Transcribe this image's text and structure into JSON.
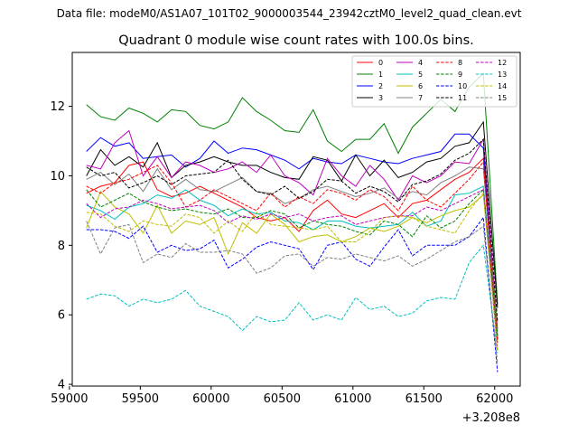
{
  "figure": {
    "suptitle": "Data file: modeM0/AS1A07_101T02_9000003544_23942cztM0_level2_quad_clean.evt"
  },
  "chart_data": {
    "type": "line",
    "title": "Quadrant 0 module wise count rates with 100.0s bins.",
    "xlabel": "",
    "ylabel": "",
    "x_offset_label": "+3.208e8",
    "xlim": [
      59020,
      62180
    ],
    "ylim": [
      3.95,
      13.55
    ],
    "xticks": [
      59000,
      59500,
      60000,
      60500,
      61000,
      61500,
      62000
    ],
    "yticks": [
      4,
      6,
      8,
      10,
      12
    ],
    "grid": false,
    "legend_position": "top-right",
    "legend_columns": 4,
    "x": [
      59120,
      59220,
      59320,
      59420,
      59520,
      59620,
      59720,
      59820,
      59920,
      60020,
      60120,
      60220,
      60320,
      60420,
      60520,
      60620,
      60720,
      60820,
      60920,
      61020,
      61120,
      61220,
      61320,
      61420,
      61520,
      61620,
      61720,
      61820,
      61920,
      62020
    ],
    "series": [
      {
        "name": "0",
        "color": "#ff0000",
        "dash": "solid",
        "values": [
          9.5,
          9.7,
          9.8,
          10.3,
          10.4,
          9.6,
          9.4,
          9.5,
          9.7,
          9.5,
          9.3,
          9.1,
          8.8,
          8.7,
          8.8,
          8.4,
          9.0,
          9.3,
          8.9,
          8.8,
          9.0,
          9.2,
          8.8,
          9.2,
          9.3,
          9.6,
          9.9,
          10.1,
          10.5,
          5.6
        ]
      },
      {
        "name": "1",
        "color": "#008000",
        "dash": "solid",
        "values": [
          12.05,
          11.7,
          11.6,
          11.95,
          11.8,
          11.55,
          11.9,
          11.85,
          11.45,
          11.35,
          11.55,
          12.25,
          11.85,
          11.6,
          11.3,
          11.25,
          11.9,
          11.0,
          10.7,
          11.05,
          11.05,
          11.5,
          10.65,
          11.4,
          11.8,
          12.2,
          11.85,
          12.55,
          12.95,
          6.3
        ]
      },
      {
        "name": "2",
        "color": "#0000ff",
        "dash": "solid",
        "values": [
          10.7,
          11.1,
          10.85,
          10.95,
          10.5,
          10.55,
          10.6,
          10.25,
          10.5,
          11.0,
          10.65,
          10.8,
          10.75,
          10.6,
          10.45,
          10.2,
          10.5,
          10.4,
          10.35,
          10.6,
          10.5,
          10.4,
          10.35,
          10.5,
          10.6,
          10.7,
          11.2,
          11.2,
          10.8,
          5.3
        ]
      },
      {
        "name": "3",
        "color": "#000000",
        "dash": "solid",
        "values": [
          10.0,
          10.75,
          10.3,
          10.55,
          10.25,
          10.95,
          9.95,
          10.3,
          10.4,
          10.55,
          10.4,
          10.3,
          10.3,
          10.1,
          9.95,
          9.9,
          10.55,
          10.45,
          9.85,
          10.6,
          10.0,
          10.45,
          9.95,
          10.1,
          10.4,
          10.5,
          10.85,
          10.95,
          11.55,
          6.2
        ]
      },
      {
        "name": "4",
        "color": "#bf00bf",
        "dash": "solid",
        "values": [
          10.3,
          10.2,
          10.95,
          11.3,
          10.0,
          10.55,
          9.95,
          10.4,
          10.3,
          10.1,
          10.2,
          10.4,
          10.1,
          10.6,
          10.0,
          9.8,
          9.45,
          10.5,
          10.0,
          9.7,
          10.3,
          9.9,
          9.3,
          10.0,
          9.8,
          10.0,
          10.4,
          10.35,
          11.05,
          5.3
        ]
      },
      {
        "name": "5",
        "color": "#00bfbf",
        "dash": "solid",
        "values": [
          9.15,
          9.0,
          8.75,
          9.1,
          9.2,
          9.45,
          9.35,
          9.6,
          9.3,
          9.15,
          8.85,
          9.05,
          8.9,
          8.95,
          8.7,
          8.65,
          8.45,
          8.7,
          8.7,
          8.55,
          8.5,
          8.55,
          8.6,
          8.95,
          8.55,
          8.7,
          9.45,
          9.5,
          9.7,
          5.4
        ]
      },
      {
        "name": "6",
        "color": "#bfbf00",
        "dash": "solid",
        "values": [
          8.5,
          9.55,
          9.1,
          8.9,
          8.35,
          9.15,
          8.35,
          8.7,
          8.6,
          8.8,
          7.75,
          8.65,
          8.35,
          8.9,
          8.6,
          8.1,
          8.25,
          8.3,
          8.1,
          8.25,
          8.5,
          8.4,
          8.55,
          8.8,
          8.65,
          8.85,
          9.0,
          9.1,
          9.45,
          5.2
        ]
      },
      {
        "name": "7",
        "color": "#808080",
        "dash": "solid",
        "values": [
          9.9,
          10.1,
          9.75,
          10.05,
          9.55,
          10.2,
          9.6,
          9.9,
          9.6,
          9.55,
          9.75,
          9.95,
          9.55,
          9.5,
          9.2,
          9.35,
          9.6,
          9.7,
          9.55,
          9.4,
          9.5,
          9.65,
          9.35,
          9.55,
          9.45,
          9.8,
          10.0,
          10.25,
          10.2,
          5.5
        ]
      },
      {
        "name": "8",
        "color": "#ff0000",
        "dash": "dashed",
        "values": [
          9.7,
          9.5,
          9.8,
          9.9,
          10.1,
          10.3,
          9.8,
          9.1,
          9.3,
          9.6,
          9.4,
          9.2,
          9.0,
          9.5,
          9.1,
          9.4,
          9.2,
          9.6,
          9.5,
          9.3,
          9.6,
          9.4,
          9.0,
          9.7,
          9.3,
          9.1,
          9.5,
          9.9,
          10.4,
          5.2
        ]
      },
      {
        "name": "9",
        "color": "#008000",
        "dash": "dashed",
        "values": [
          9.6,
          9.1,
          9.3,
          9.5,
          9.25,
          9.1,
          9.0,
          9.05,
          8.95,
          8.9,
          9.05,
          8.8,
          8.8,
          9.0,
          8.9,
          8.5,
          8.7,
          8.6,
          8.55,
          8.4,
          8.3,
          8.7,
          8.6,
          8.25,
          8.85,
          8.5,
          8.7,
          9.2,
          9.6,
          5.4
        ]
      },
      {
        "name": "10",
        "color": "#0000ff",
        "dash": "dashed",
        "values": [
          8.45,
          8.45,
          8.4,
          8.2,
          8.55,
          7.8,
          8.0,
          7.85,
          7.9,
          8.15,
          7.35,
          7.6,
          7.95,
          8.1,
          8.0,
          7.9,
          7.3,
          8.0,
          8.1,
          7.6,
          7.4,
          7.95,
          8.45,
          7.7,
          8.0,
          8.0,
          8.0,
          8.25,
          8.8,
          4.35
        ]
      },
      {
        "name": "11",
        "color": "#000000",
        "dash": "dashed",
        "values": [
          10.25,
          10.0,
          10.1,
          9.65,
          9.8,
          10.0,
          9.75,
          10.0,
          10.05,
          10.1,
          10.45,
          9.9,
          9.55,
          9.45,
          9.7,
          9.35,
          9.55,
          9.9,
          9.85,
          9.5,
          9.7,
          9.55,
          9.25,
          9.75,
          9.85,
          10.05,
          10.45,
          10.65,
          11.05,
          5.8
        ]
      },
      {
        "name": "12",
        "color": "#bf00bf",
        "dash": "dashed",
        "values": [
          9.2,
          8.8,
          9.05,
          9.1,
          9.3,
          9.2,
          9.05,
          9.1,
          9.15,
          9.0,
          8.65,
          8.85,
          8.75,
          8.9,
          8.8,
          8.9,
          8.7,
          8.8,
          8.85,
          8.6,
          8.7,
          8.8,
          8.85,
          8.85,
          9.1,
          9.0,
          9.2,
          9.4,
          9.6,
          5.0
        ]
      },
      {
        "name": "13",
        "color": "#00bfbf",
        "dash": "dashed",
        "values": [
          6.45,
          6.6,
          6.55,
          6.25,
          6.45,
          6.35,
          6.45,
          6.7,
          6.25,
          6.1,
          5.95,
          5.55,
          5.95,
          5.8,
          5.85,
          6.35,
          5.85,
          6.0,
          5.85,
          6.5,
          6.15,
          6.25,
          5.95,
          6.05,
          6.4,
          6.5,
          6.45,
          7.5,
          8.0,
          4.9
        ]
      },
      {
        "name": "14",
        "color": "#bfbf00",
        "dash": "dashed",
        "values": [
          8.95,
          8.9,
          8.55,
          8.4,
          8.7,
          8.6,
          8.55,
          8.9,
          8.8,
          8.35,
          8.7,
          8.4,
          8.95,
          8.6,
          8.55,
          8.5,
          8.45,
          8.55,
          8.1,
          8.1,
          8.4,
          8.8,
          8.85,
          8.8,
          8.55,
          8.45,
          8.35,
          9.0,
          9.5,
          4.95
        ]
      },
      {
        "name": "15",
        "color": "#808080",
        "dash": "dashed",
        "values": [
          8.7,
          7.75,
          8.5,
          8.6,
          7.5,
          7.75,
          7.65,
          8.05,
          7.8,
          7.8,
          7.85,
          7.75,
          7.2,
          7.35,
          7.7,
          7.75,
          7.4,
          7.65,
          7.6,
          7.75,
          7.65,
          7.55,
          7.7,
          7.4,
          7.6,
          7.85,
          8.1,
          8.25,
          8.55,
          4.6
        ]
      }
    ]
  }
}
